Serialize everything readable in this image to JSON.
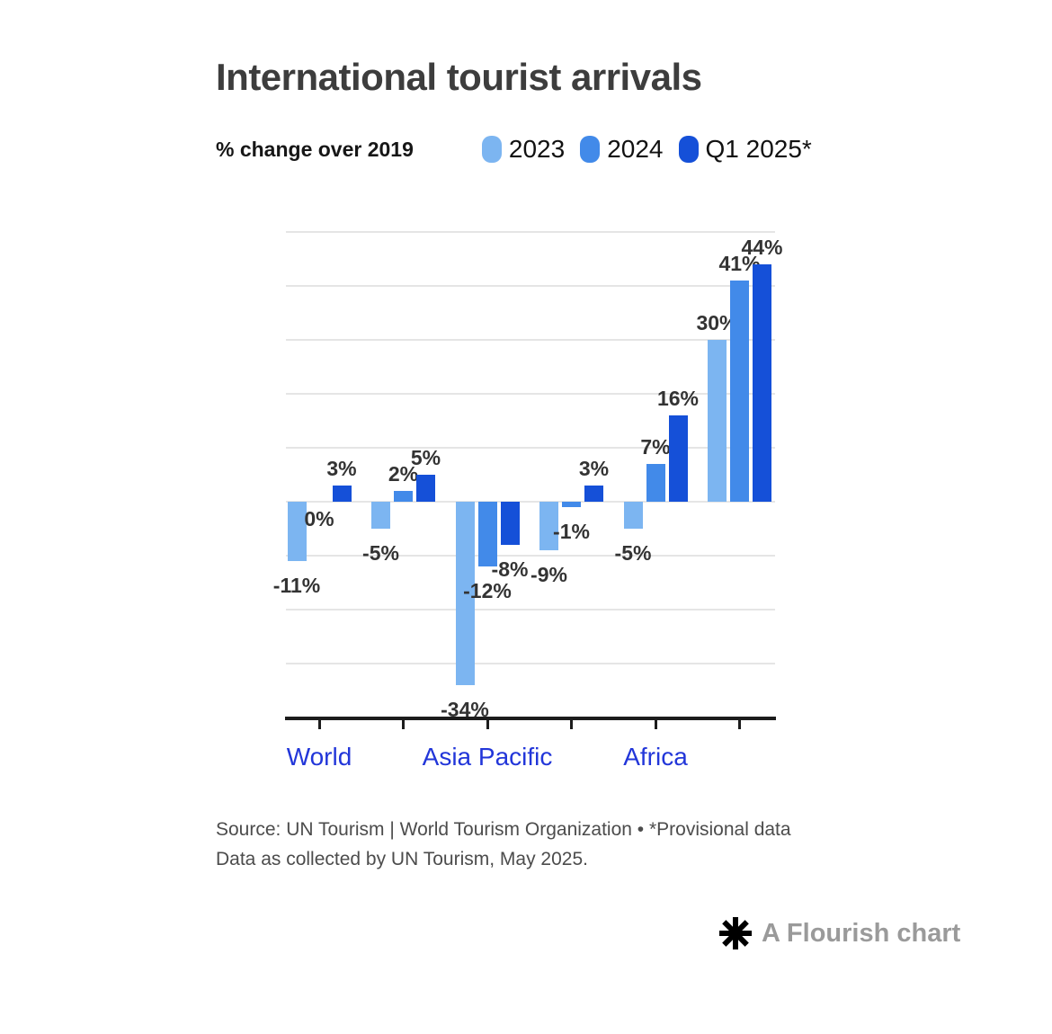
{
  "header": {
    "title": "International tourist arrivals"
  },
  "legend": {
    "title": "% change over 2019",
    "items": [
      {
        "label": "2023",
        "color": "#7cb5f1"
      },
      {
        "label": "2024",
        "color": "#428ae9"
      },
      {
        "label": "Q1 2025*",
        "color": "#1550d8"
      }
    ]
  },
  "chart_data": {
    "type": "bar",
    "title": "International tourist arrivals",
    "subtitle": "% change over 2019",
    "categories": [
      "World",
      "",
      "Asia Pacific",
      "",
      "Africa",
      ""
    ],
    "series": [
      {
        "name": "2023",
        "color": "#7cb5f1",
        "values": [
          -11,
          -5,
          -34,
          -9,
          -5,
          30
        ]
      },
      {
        "name": "2024",
        "color": "#428ae9",
        "values": [
          0,
          2,
          -12,
          -1,
          7,
          41
        ]
      },
      {
        "name": "Q1 2025*",
        "color": "#1550d8",
        "values": [
          3,
          5,
          -8,
          3,
          16,
          44
        ]
      }
    ],
    "value_labels": [
      "-11%",
      "0%",
      "3%",
      "-5%",
      "2%",
      "5%",
      "-34%",
      "-12%",
      "-8%",
      "-9%",
      "-1%",
      "3%",
      "-5%",
      "7%",
      "16%",
      "30%",
      "41%",
      "44%"
    ],
    "value_suffix": "%",
    "ylim": [
      -40,
      50
    ],
    "gridline_step": 10,
    "grid": true,
    "legend_position": "top",
    "x_axis_label_color": "#2236d9",
    "value_label_color": "#333333"
  },
  "footer": {
    "line1": "Source: UN Tourism | World Tourism Organization • *Provisional data",
    "line2": "Data as collected by UN Tourism, May 2025."
  },
  "credit": {
    "label": "A Flourish chart",
    "icon": "flourish-asterisk-icon"
  }
}
